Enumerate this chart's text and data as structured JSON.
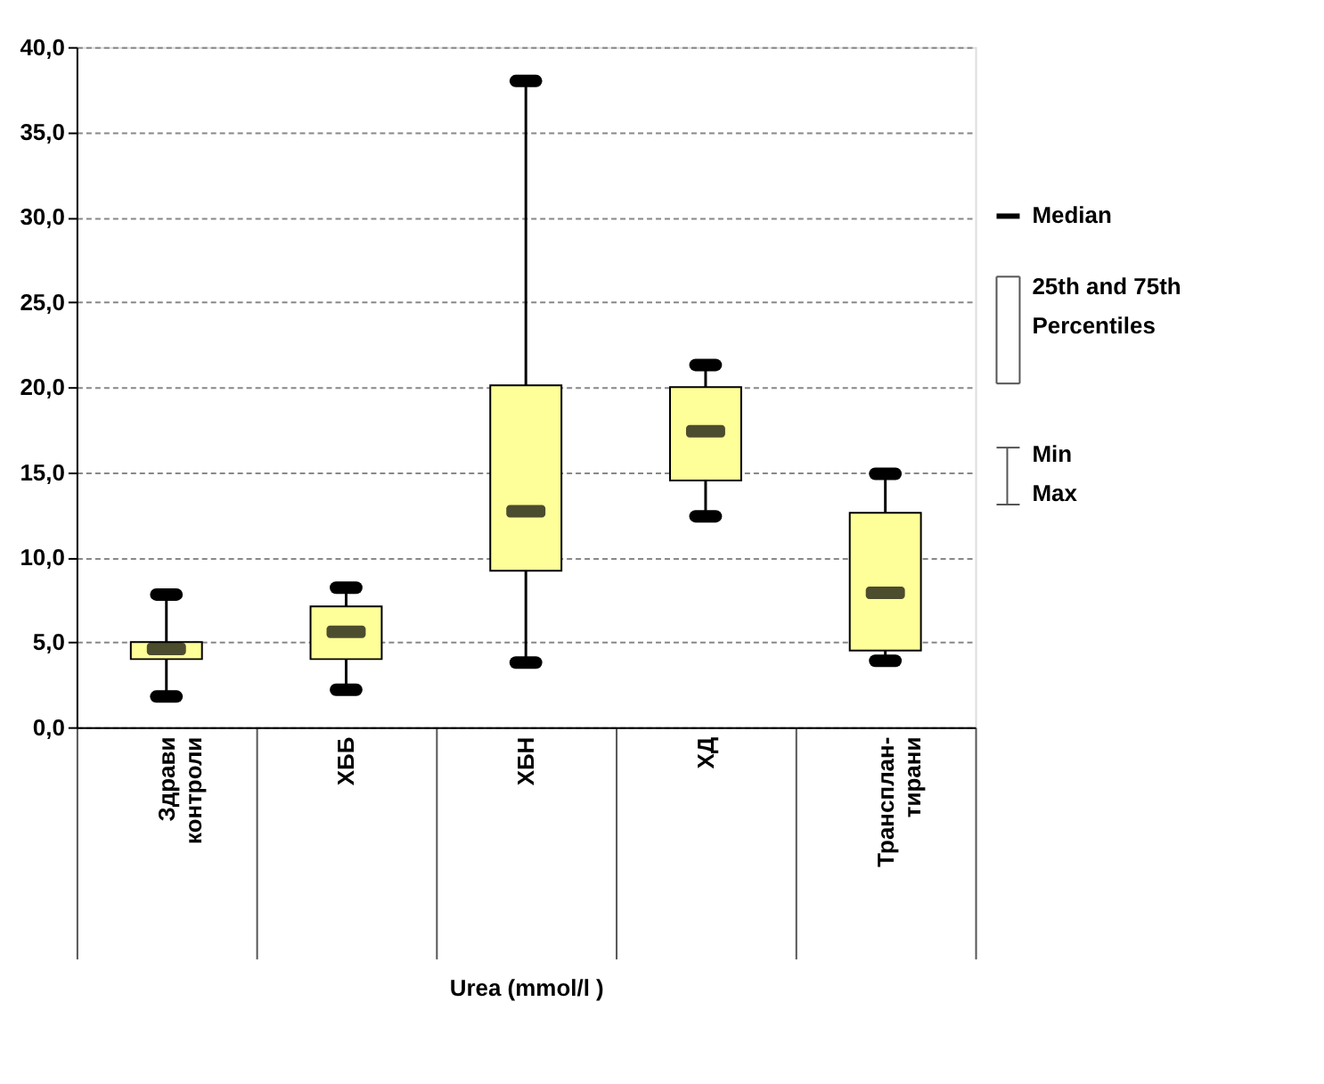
{
  "chart_data": {
    "type": "box",
    "xlabel": "Urea (mmol/l )",
    "categories": [
      "Здрави\nконтроли",
      "ХББ",
      "ХБН",
      "ХД",
      "Трансплан-\nтирани"
    ],
    "boxes": [
      {
        "low": 1.8,
        "q1": 4.0,
        "median": 4.6,
        "q3": 5.0,
        "high": 7.8
      },
      {
        "low": 2.2,
        "q1": 4.0,
        "median": 5.6,
        "q3": 7.1,
        "high": 8.2
      },
      {
        "low": 3.8,
        "q1": 9.2,
        "median": 12.7,
        "q3": 20.1,
        "high": 38.0
      },
      {
        "low": 12.4,
        "q1": 14.5,
        "median": 17.4,
        "q3": 20.0,
        "high": 21.3
      },
      {
        "low": 3.9,
        "q1": 4.5,
        "median": 7.9,
        "q3": 12.6,
        "high": 14.9
      }
    ],
    "color": "#ffff99",
    "ylim": [
      0,
      40
    ],
    "yticks": [
      {
        "value": 0,
        "label": "0,0"
      },
      {
        "value": 5,
        "label": "5,0"
      },
      {
        "value": 10,
        "label": "10,0"
      },
      {
        "value": 15,
        "label": "15,0"
      },
      {
        "value": 20,
        "label": "20,0"
      },
      {
        "value": 25,
        "label": "25,0"
      },
      {
        "value": 30,
        "label": "30,0"
      },
      {
        "value": 35,
        "label": "35,0"
      },
      {
        "value": 40,
        "label": "40,0"
      }
    ],
    "grid": "y",
    "annotations": [
      "Median",
      "25th and 75th\nPercentiles",
      "Min\nMax"
    ]
  }
}
